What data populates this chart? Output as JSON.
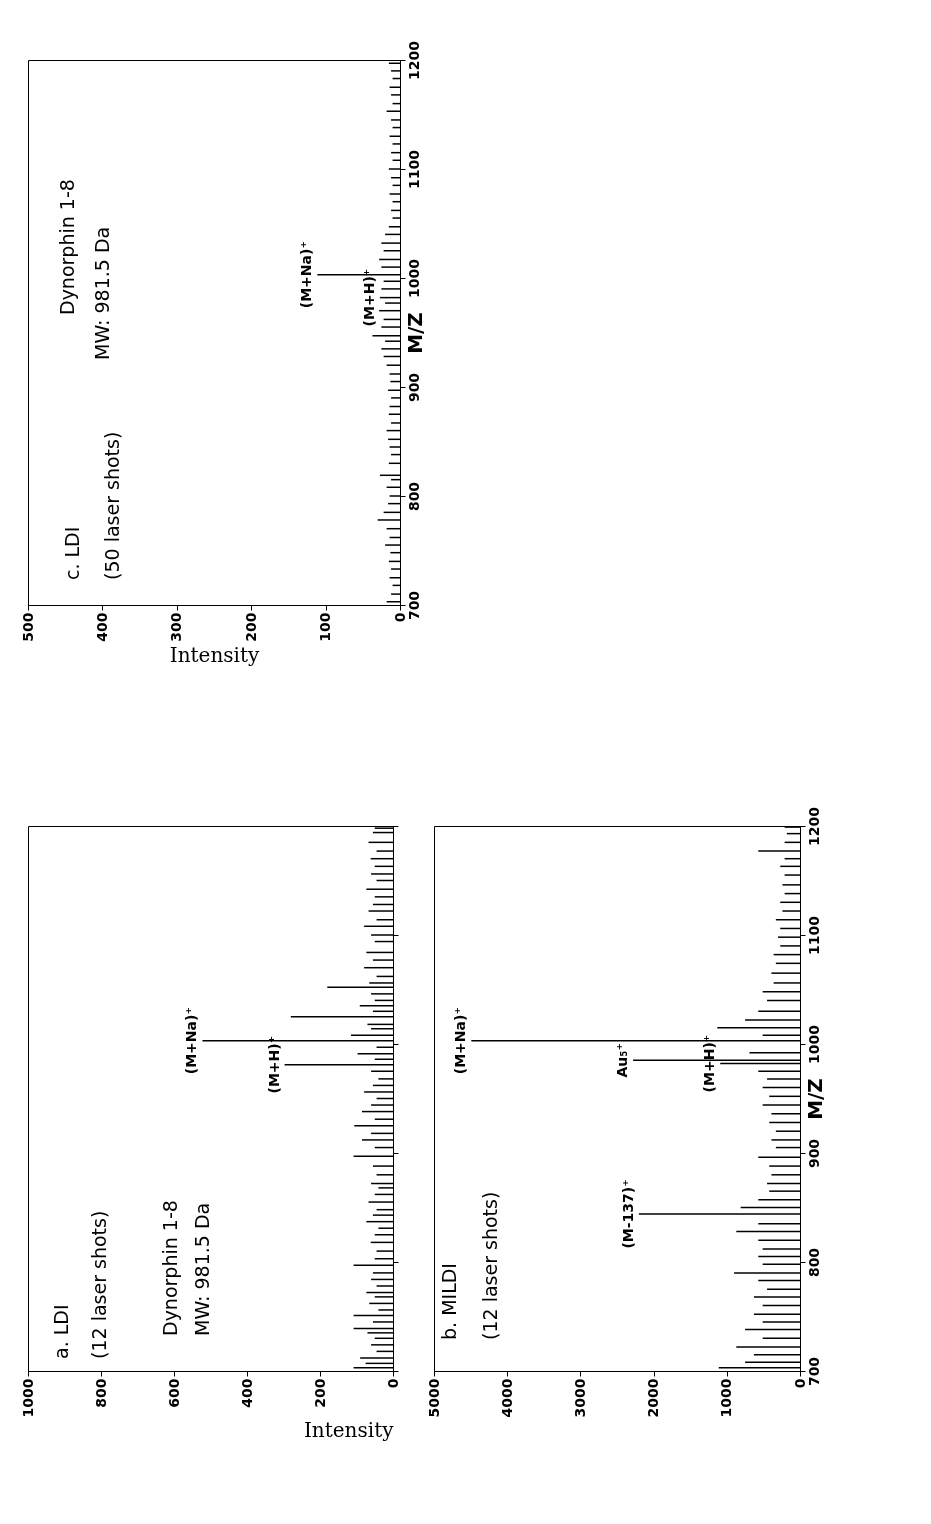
{
  "chart_data": [
    {
      "type": "bar",
      "orientation": "horizontal",
      "color": "#000000",
      "x": [
        703,
        710,
        718,
        725,
        733,
        740,
        748,
        755,
        762,
        770,
        778,
        785,
        793,
        800,
        808,
        815,
        819,
        830,
        838,
        845,
        852,
        860,
        867,
        875,
        882,
        890,
        897,
        905,
        912,
        920,
        928,
        935,
        942,
        947,
        955,
        962,
        970,
        977,
        982,
        990,
        997,
        1003,
        1010,
        1017,
        1025,
        1032,
        1040,
        1047,
        1055,
        1062,
        1070,
        1077,
        1085,
        1092,
        1100,
        1108,
        1115,
        1123,
        1130,
        1138,
        1145,
        1153,
        1160,
        1168,
        1175,
        1183,
        1190,
        1197
      ],
      "values": [
        18,
        12,
        10,
        14,
        12,
        15,
        13,
        20,
        14,
        18,
        30,
        22,
        16,
        14,
        18,
        12,
        27,
        15,
        12,
        14,
        16,
        18,
        12,
        15,
        14,
        12,
        16,
        13,
        14,
        18,
        22,
        25,
        20,
        37,
        25,
        22,
        28,
        20,
        27,
        25,
        22,
        111,
        25,
        28,
        22,
        25,
        20,
        15,
        10,
        12,
        10,
        14,
        10,
        12,
        15,
        10,
        12,
        10,
        14,
        10,
        12,
        18,
        10,
        12,
        14,
        10,
        12,
        15
      ],
      "xlim": [
        500,
        0
      ],
      "xticks": [
        0,
        100,
        200,
        300,
        400,
        500
      ],
      "ylim": [
        700,
        1200
      ],
      "yticks": [
        700,
        800,
        900,
        1000,
        1100,
        1200
      ],
      "xlabel": "Intensity",
      "ylabel": "M/Z",
      "annotations": [
        "c. LDI",
        "(50 laser shots)",
        "Dynorphin  1-8",
        "MW:  981.5 Da",
        {
          "text": "(M+Na)⁺",
          "x": 111,
          "y": 1003
        },
        {
          "text": "(M+H)⁺",
          "x": 27,
          "y": 982
        }
      ]
    },
    {
      "type": "bar",
      "orientation": "horizontal",
      "color": "#000000",
      "x": [
        703,
        707,
        712,
        718,
        724,
        730,
        735,
        739,
        745,
        751,
        756,
        762,
        768,
        772,
        778,
        784,
        790,
        797,
        803,
        810,
        818,
        825,
        831,
        837,
        843,
        848,
        855,
        862,
        868,
        872,
        880,
        888,
        897,
        905,
        912,
        918,
        925,
        931,
        938,
        944,
        950,
        956,
        962,
        968,
        975,
        981,
        986,
        991,
        997,
        1003,
        1008,
        1014,
        1018,
        1025,
        1030,
        1035,
        1040,
        1046,
        1052,
        1056,
        1062,
        1070,
        1077,
        1084,
        1094,
        1100,
        1108,
        1114,
        1122,
        1128,
        1135,
        1142,
        1150,
        1156,
        1163,
        1170,
        1177,
        1185,
        1194,
        1198
      ],
      "values": [
        108,
        75,
        90,
        45,
        60,
        50,
        70,
        108,
        55,
        108,
        40,
        65,
        50,
        73,
        45,
        60,
        55,
        108,
        50,
        45,
        61,
        50,
        40,
        73,
        55,
        45,
        67,
        50,
        40,
        60,
        45,
        55,
        108,
        50,
        85,
        60,
        106,
        50,
        85,
        60,
        45,
        79,
        55,
        40,
        60,
        297,
        50,
        97,
        45,
        522,
        115,
        60,
        70,
        280,
        55,
        91,
        50,
        60,
        180,
        65,
        45,
        79,
        55,
        73,
        50,
        60,
        79,
        45,
        67,
        55,
        50,
        73,
        45,
        60,
        50,
        61,
        45,
        67,
        55,
        50
      ],
      "xlim": [
        1000,
        0
      ],
      "xticks": [
        0,
        200,
        400,
        600,
        800,
        1000
      ],
      "ylim": [
        700,
        1200
      ],
      "yticks": [
        700,
        800,
        900,
        1000,
        1100,
        1200
      ],
      "xlabel": "Intensity",
      "tick_labels": "x",
      "annotations": [
        "a.  LDI",
        "(12 laser shots)",
        "Dynorphin  1-8",
        "MW:  981.5 Da",
        {
          "text": "(M+Na)⁺",
          "x": 522,
          "y": 1003
        },
        {
          "text": "(M+H)⁺",
          "x": 297,
          "y": 981
        }
      ]
    },
    {
      "type": "bar",
      "orientation": "horizontal",
      "color": "#000000",
      "x": [
        703,
        708,
        715,
        722,
        730,
        738,
        745,
        752,
        760,
        768,
        775,
        783,
        790,
        798,
        805,
        812,
        820,
        828,
        835,
        844,
        850,
        857,
        865,
        872,
        880,
        888,
        896,
        905,
        912,
        920,
        928,
        936,
        944,
        952,
        960,
        968,
        975,
        982,
        985,
        992,
        1003,
        1008,
        1015,
        1022,
        1030,
        1040,
        1048,
        1056,
        1065,
        1074,
        1082,
        1090,
        1098,
        1106,
        1114,
        1122,
        1130,
        1138,
        1146,
        1155,
        1163,
        1170,
        1177,
        1185,
        1193,
        1199
      ],
      "values": [
        1110,
        750,
        630,
        870,
        510,
        750,
        510,
        630,
        510,
        630,
        450,
        570,
        900,
        510,
        570,
        510,
        570,
        870,
        570,
        2200,
        810,
        570,
        420,
        450,
        390,
        420,
        570,
        330,
        390,
        330,
        420,
        390,
        510,
        420,
        510,
        450,
        570,
        1090,
        2280,
        690,
        4490,
        510,
        1130,
        750,
        570,
        450,
        510,
        360,
        390,
        330,
        360,
        270,
        300,
        270,
        330,
        240,
        270,
        210,
        240,
        210,
        270,
        210,
        570,
        210,
        180,
        210
      ],
      "xlim": [
        5000,
        0
      ],
      "xticks": [
        0,
        1000,
        2000,
        3000,
        4000,
        5000
      ],
      "ylim": [
        700,
        1200
      ],
      "yticks": [
        700,
        800,
        900,
        1000,
        1100,
        1200
      ],
      "ylabel": "M/Z",
      "annotations": [
        "b.  MILDI",
        "(12 laser shots)",
        {
          "text": "(M+Na)⁺",
          "x": 4490,
          "y": 1003
        },
        {
          "text": "Au₅⁺",
          "x": 2280,
          "y": 985
        },
        {
          "text": "(M+H)⁺",
          "x": 1090,
          "y": 982
        },
        {
          "text": "(M-137)⁺",
          "x": 2200,
          "y": 844
        }
      ]
    }
  ]
}
